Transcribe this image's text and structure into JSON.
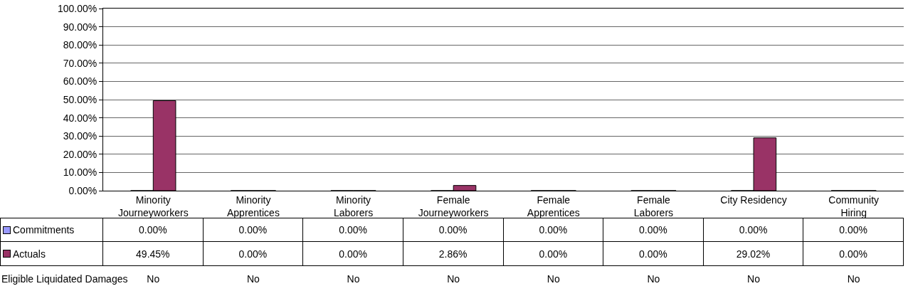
{
  "chart_data": {
    "type": "bar",
    "categories": [
      "Minority Journeyworkers",
      "Minority Apprentices",
      "Minority Laborers",
      "Female Journeyworkers",
      "Female Apprentices",
      "Female Laborers",
      "City Residency",
      "Community Hiring"
    ],
    "series": [
      {
        "name": "Commitments",
        "color": "#9999ff",
        "values": [
          0,
          0,
          0,
          0,
          0,
          0,
          0,
          0
        ],
        "value_labels": [
          "0.00%",
          "0.00%",
          "0.00%",
          "0.00%",
          "0.00%",
          "0.00%",
          "0.00%",
          "0.00%"
        ]
      },
      {
        "name": "Actuals",
        "color": "#993366",
        "values": [
          49.45,
          0,
          0,
          2.86,
          0,
          0,
          29.02,
          0
        ],
        "value_labels": [
          "49.45%",
          "0.00%",
          "0.00%",
          "2.86%",
          "0.00%",
          "0.00%",
          "29.02%",
          "0.00%"
        ]
      }
    ],
    "ylim": [
      0,
      100
    ],
    "yticks": [
      {
        "value": 0,
        "label": "0.00%"
      },
      {
        "value": 10,
        "label": "10.00%"
      },
      {
        "value": 20,
        "label": "20.00%"
      },
      {
        "value": 30,
        "label": "30.00%"
      },
      {
        "value": 40,
        "label": "40.00%"
      },
      {
        "value": 50,
        "label": "50.00%"
      },
      {
        "value": 60,
        "label": "60.00%"
      },
      {
        "value": 70,
        "label": "70.00%"
      },
      {
        "value": 80,
        "label": "80.00%"
      },
      {
        "value": 90,
        "label": "90.00%"
      },
      {
        "value": 100,
        "label": "100.00%"
      }
    ],
    "grid": "y",
    "legend": "bottom left",
    "annotations": [
      "Eligible Liquidated Damages",
      "No",
      "No",
      "No",
      "No",
      "No",
      "No",
      "No",
      "No"
    ]
  }
}
